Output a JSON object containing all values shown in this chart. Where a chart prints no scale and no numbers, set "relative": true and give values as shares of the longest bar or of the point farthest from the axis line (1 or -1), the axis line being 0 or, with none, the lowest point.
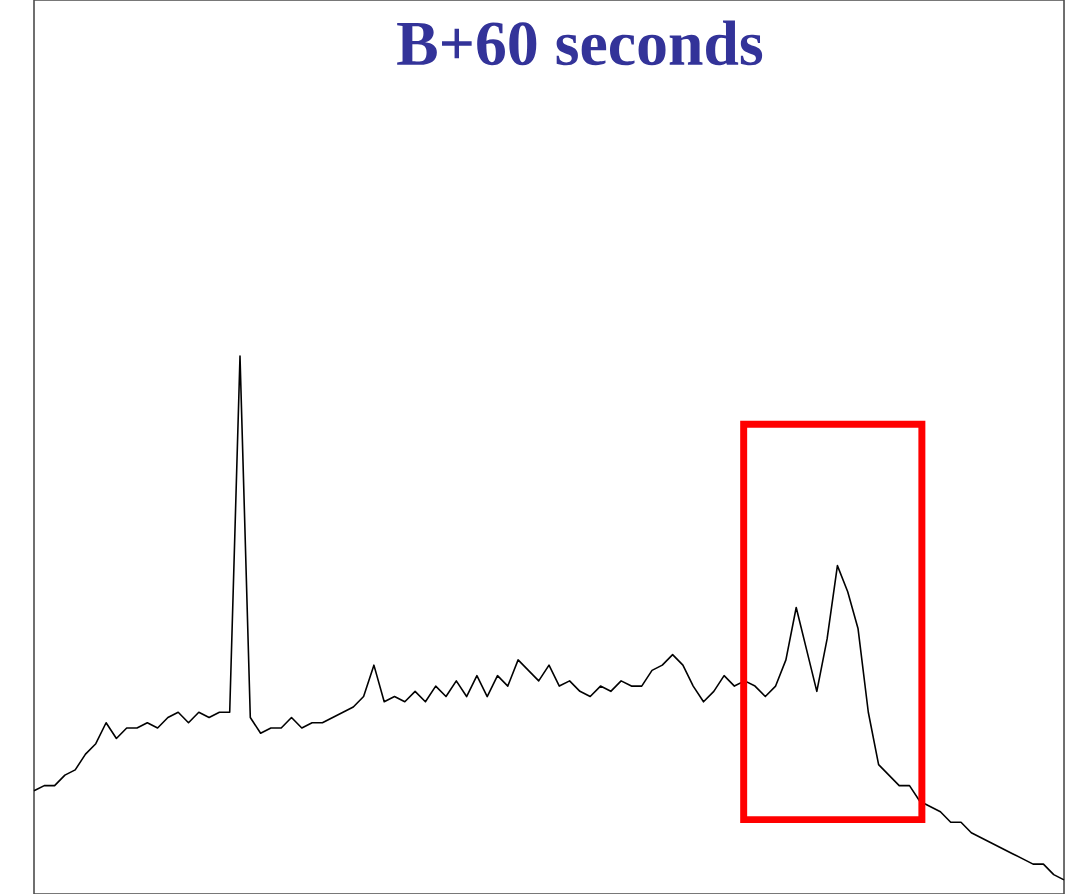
{
  "chart_data": {
    "type": "line",
    "title": "B+60 seconds",
    "relative": true,
    "color": "#000000",
    "categories": [
      null,
      null,
      null,
      null,
      null,
      null,
      null,
      null,
      null,
      null,
      null,
      null,
      null,
      null,
      null,
      null,
      null,
      null,
      null,
      null,
      null,
      null,
      null,
      null,
      null,
      null,
      null,
      null,
      null,
      null,
      null,
      null,
      null,
      null,
      null,
      null,
      null,
      null,
      null,
      null,
      null,
      null,
      null,
      null,
      null,
      null,
      null,
      null,
      null,
      null,
      null,
      null,
      null,
      null,
      null,
      null,
      null,
      null,
      null,
      null,
      null,
      null,
      null,
      null,
      null,
      null,
      null,
      null,
      null,
      null,
      null,
      null,
      null,
      null,
      null,
      null,
      null,
      null,
      null,
      null,
      null,
      null,
      null,
      null,
      null,
      null,
      null,
      null,
      null,
      null,
      null,
      null,
      null,
      null,
      null,
      null,
      null,
      null,
      null,
      null,
      null
    ],
    "values": [
      0.17,
      0.18,
      0.18,
      0.2,
      0.21,
      0.24,
      0.26,
      0.3,
      0.27,
      0.29,
      0.29,
      0.3,
      0.29,
      0.31,
      0.32,
      0.3,
      0.32,
      0.31,
      0.32,
      0.32,
      1,
      0.31,
      0.28,
      0.29,
      0.29,
      0.31,
      0.29,
      0.3,
      0.3,
      0.31,
      0.32,
      0.33,
      0.35,
      0.41,
      0.34,
      0.35,
      0.34,
      0.36,
      0.34,
      0.37,
      0.35,
      0.38,
      0.35,
      0.39,
      0.35,
      0.39,
      0.37,
      0.42,
      0.4,
      0.38,
      0.41,
      0.37,
      0.38,
      0.36,
      0.35,
      0.37,
      0.36,
      0.38,
      0.37,
      0.37,
      0.4,
      0.41,
      0.43,
      0.41,
      0.37,
      0.34,
      0.36,
      0.39,
      0.37,
      0.38,
      0.37,
      0.35,
      0.37,
      0.42,
      0.52,
      0.44,
      0.36,
      0.46,
      0.6,
      0.55,
      0.48,
      0.32,
      0.22,
      0.2,
      0.18,
      0.18,
      0.15,
      0.14,
      0.13,
      0.11,
      0.11,
      0.09,
      0.08,
      0.07,
      0.06,
      0.05,
      0.04,
      0.03,
      0.03,
      0.01,
      0
    ]
  }
}
